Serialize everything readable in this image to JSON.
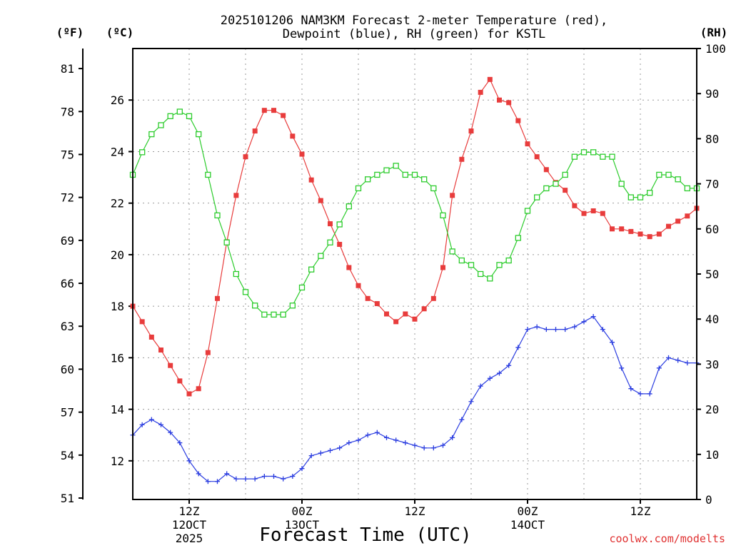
{
  "chart_data": {
    "type": "line",
    "title_line1": "2025101206 NAM3KM Forecast 2-meter Temperature (red),",
    "title_line2": "Dewpoint (blue), RH (green) for KSTL",
    "xlabel": "Forecast Time (UTC)",
    "credit": "coolwx.com/modelts",
    "x_unit": "forecast hour",
    "xlim": [
      0,
      60
    ],
    "ylim_c": [
      10.5,
      28.0
    ],
    "ylim_rh": [
      0,
      100
    ],
    "unit_labels": {
      "f": "(ºF)",
      "c": "(ºC)",
      "rh": "(RH)"
    },
    "f_ticks": [
      51,
      54,
      57,
      60,
      63,
      66,
      69,
      72,
      75,
      78,
      81
    ],
    "c_ticks": [
      12,
      14,
      16,
      18,
      20,
      22,
      24,
      26
    ],
    "rh_ticks": [
      0,
      10,
      20,
      30,
      40,
      50,
      60,
      70,
      80,
      90,
      100
    ],
    "x_ticks": [
      {
        "hour": 6,
        "label": "12Z",
        "sub1": "12OCT",
        "sub2": "2025"
      },
      {
        "hour": 18,
        "label": "00Z",
        "sub1": "13OCT",
        "sub2": ""
      },
      {
        "hour": 30,
        "label": "12Z",
        "sub1": "",
        "sub2": ""
      },
      {
        "hour": 42,
        "label": "00Z",
        "sub1": "14OCT",
        "sub2": ""
      },
      {
        "hour": 54,
        "label": "12Z",
        "sub1": "",
        "sub2": ""
      }
    ],
    "series": [
      {
        "name": "2-meter Temperature",
        "unit": "C",
        "color": "#e83c3c",
        "marker": "filled-square",
        "values": [
          18.0,
          17.4,
          16.8,
          16.3,
          15.7,
          15.1,
          14.6,
          14.8,
          16.2,
          18.3,
          20.5,
          22.3,
          23.8,
          24.8,
          25.6,
          25.6,
          25.4,
          24.6,
          23.9,
          22.9,
          22.1,
          21.2,
          20.4,
          19.5,
          18.8,
          18.3,
          18.1,
          17.7,
          17.4,
          17.7,
          17.5,
          17.9,
          18.3,
          19.5,
          22.3,
          23.7,
          24.8,
          26.3,
          26.8,
          26.0,
          25.9,
          25.2,
          24.3,
          23.8,
          23.3,
          22.8,
          22.5,
          21.9,
          21.6,
          21.7,
          21.6,
          21.0,
          21.0,
          20.9,
          20.8,
          20.7,
          20.8,
          21.1,
          21.3,
          21.5,
          21.8
        ]
      },
      {
        "name": "Dewpoint",
        "unit": "C",
        "color": "#2a3ce0",
        "marker": "plus",
        "values": [
          13.0,
          13.4,
          13.6,
          13.4,
          13.1,
          12.7,
          12.0,
          11.5,
          11.2,
          11.2,
          11.5,
          11.3,
          11.3,
          11.3,
          11.4,
          11.4,
          11.3,
          11.4,
          11.7,
          12.2,
          12.3,
          12.4,
          12.5,
          12.7,
          12.8,
          13.0,
          13.1,
          12.9,
          12.8,
          12.7,
          12.6,
          12.5,
          12.5,
          12.6,
          12.9,
          13.6,
          14.3,
          14.9,
          15.2,
          15.4,
          15.7,
          16.4,
          17.1,
          17.2,
          17.1,
          17.1,
          17.1,
          17.2,
          17.4,
          17.6,
          17.1,
          16.6,
          15.6,
          14.8,
          14.6,
          14.6,
          15.6,
          16.0,
          15.9,
          15.8,
          15.8
        ]
      },
      {
        "name": "RH",
        "unit": "%",
        "color": "#2ccc2c",
        "marker": "open-square",
        "values": [
          72,
          77,
          81,
          83,
          85,
          86,
          85,
          81,
          72,
          63,
          57,
          50,
          46,
          43,
          41,
          41,
          41,
          43,
          47,
          51,
          54,
          57,
          61,
          65,
          69,
          71,
          72,
          73,
          74,
          72,
          72,
          71,
          69,
          63,
          55,
          53,
          52,
          50,
          49,
          52,
          53,
          58,
          64,
          67,
          69,
          70,
          72,
          76,
          77,
          77,
          76,
          76,
          70,
          67,
          67,
          68,
          72,
          72,
          71,
          69,
          69
        ]
      }
    ]
  }
}
